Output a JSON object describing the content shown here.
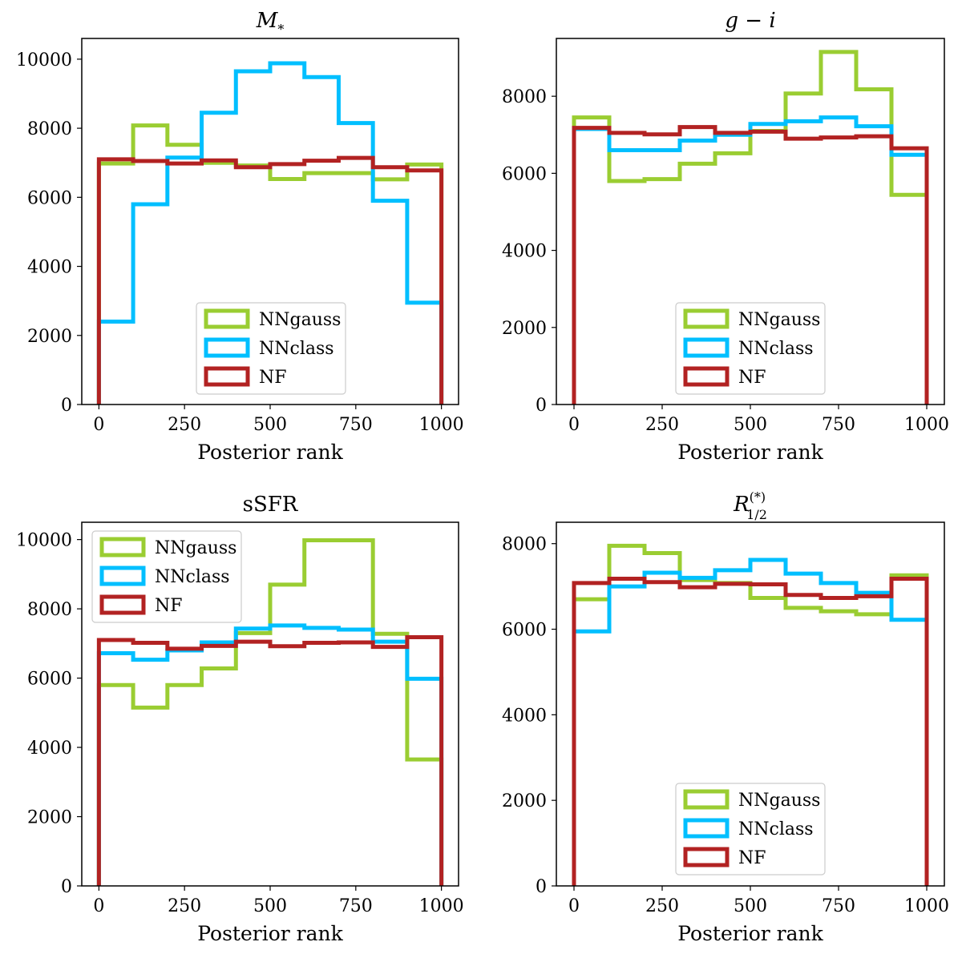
{
  "chart_data": [
    {
      "type": "histogram-step",
      "title": "M*",
      "title_main": "M",
      "title_sub": "*",
      "xlabel": "Posterior rank",
      "ylabel": "",
      "xlim": [
        -50,
        1050
      ],
      "ylim": [
        0,
        10600
      ],
      "xticks": [
        0,
        250,
        500,
        750,
        1000
      ],
      "yticks": [
        0,
        2000,
        4000,
        6000,
        8000,
        10000
      ],
      "legend_position": "lower-center",
      "bin_edges": [
        0,
        100,
        200,
        300,
        400,
        500,
        600,
        700,
        800,
        900,
        1000
      ],
      "series": [
        {
          "name": "NNgauss",
          "color": "#9acd32",
          "values": [
            6980,
            8080,
            7520,
            7000,
            6920,
            6530,
            6700,
            6700,
            6520,
            6950
          ]
        },
        {
          "name": "NNclass",
          "color": "#00bfff",
          "values": [
            2400,
            5800,
            7150,
            8450,
            9650,
            9880,
            9480,
            8150,
            5900,
            2950
          ]
        },
        {
          "name": "NF",
          "color": "#b22222",
          "values": [
            7100,
            7050,
            6980,
            7070,
            6870,
            6960,
            7060,
            7140,
            6870,
            6780
          ]
        }
      ]
    },
    {
      "type": "histogram-step",
      "title": "g − i",
      "xlabel": "Posterior rank",
      "ylabel": "",
      "xlim": [
        -50,
        1050
      ],
      "ylim": [
        0,
        9500
      ],
      "xticks": [
        0,
        250,
        500,
        750,
        1000
      ],
      "yticks": [
        0,
        2000,
        4000,
        6000,
        8000
      ],
      "legend_position": "lower-center",
      "bin_edges": [
        0,
        100,
        200,
        300,
        400,
        500,
        600,
        700,
        800,
        900,
        1000
      ],
      "series": [
        {
          "name": "NNgauss",
          "color": "#9acd32",
          "values": [
            7450,
            5800,
            5850,
            6250,
            6520,
            7100,
            8070,
            9150,
            8180,
            5440
          ]
        },
        {
          "name": "NNclass",
          "color": "#00bfff",
          "values": [
            7150,
            6600,
            6600,
            6850,
            7000,
            7280,
            7350,
            7450,
            7220,
            6480
          ]
        },
        {
          "name": "NF",
          "color": "#b22222",
          "values": [
            7180,
            7050,
            7010,
            7200,
            7050,
            7080,
            6900,
            6930,
            6960,
            6650
          ]
        }
      ]
    },
    {
      "type": "histogram-step",
      "title": "sSFR",
      "xlabel": "Posterior rank",
      "ylabel": "",
      "xlim": [
        -50,
        1050
      ],
      "ylim": [
        0,
        10500
      ],
      "xticks": [
        0,
        250,
        500,
        750,
        1000
      ],
      "yticks": [
        0,
        2000,
        4000,
        6000,
        8000,
        10000
      ],
      "legend_position": "upper-left",
      "bin_edges": [
        0,
        100,
        200,
        300,
        400,
        500,
        600,
        700,
        800,
        900,
        1000
      ],
      "series": [
        {
          "name": "NNgauss",
          "color": "#9acd32",
          "values": [
            5800,
            5150,
            5800,
            6280,
            7300,
            8700,
            9980,
            9980,
            7280,
            3650
          ]
        },
        {
          "name": "NNclass",
          "color": "#00bfff",
          "values": [
            6720,
            6530,
            6800,
            7030,
            7430,
            7520,
            7450,
            7400,
            7050,
            5980
          ]
        },
        {
          "name": "NF",
          "color": "#b22222",
          "values": [
            7100,
            7020,
            6850,
            6930,
            7050,
            6920,
            7020,
            7030,
            6900,
            7180
          ]
        }
      ]
    },
    {
      "type": "histogram-step",
      "title": "R_{1/2}^{(*)}",
      "title_main": "R",
      "title_sub": "1/2",
      "title_sup": "(*)",
      "xlabel": "Posterior rank",
      "ylabel": "",
      "xlim": [
        -50,
        1050
      ],
      "ylim": [
        0,
        8500
      ],
      "xticks": [
        0,
        250,
        500,
        750,
        1000
      ],
      "yticks": [
        0,
        2000,
        4000,
        6000,
        8000
      ],
      "legend_position": "lower-center",
      "bin_edges": [
        0,
        100,
        200,
        300,
        400,
        500,
        600,
        700,
        800,
        900,
        1000
      ],
      "series": [
        {
          "name": "NNgauss",
          "color": "#9acd32",
          "values": [
            6700,
            7950,
            7780,
            7150,
            7080,
            6730,
            6500,
            6420,
            6350,
            7260
          ]
        },
        {
          "name": "NNclass",
          "color": "#00bfff",
          "values": [
            5950,
            7000,
            7320,
            7200,
            7380,
            7620,
            7300,
            7080,
            6850,
            6220
          ]
        },
        {
          "name": "NF",
          "color": "#b22222",
          "values": [
            7080,
            7180,
            7100,
            6980,
            7060,
            7050,
            6800,
            6730,
            6770,
            7180
          ]
        }
      ]
    }
  ]
}
